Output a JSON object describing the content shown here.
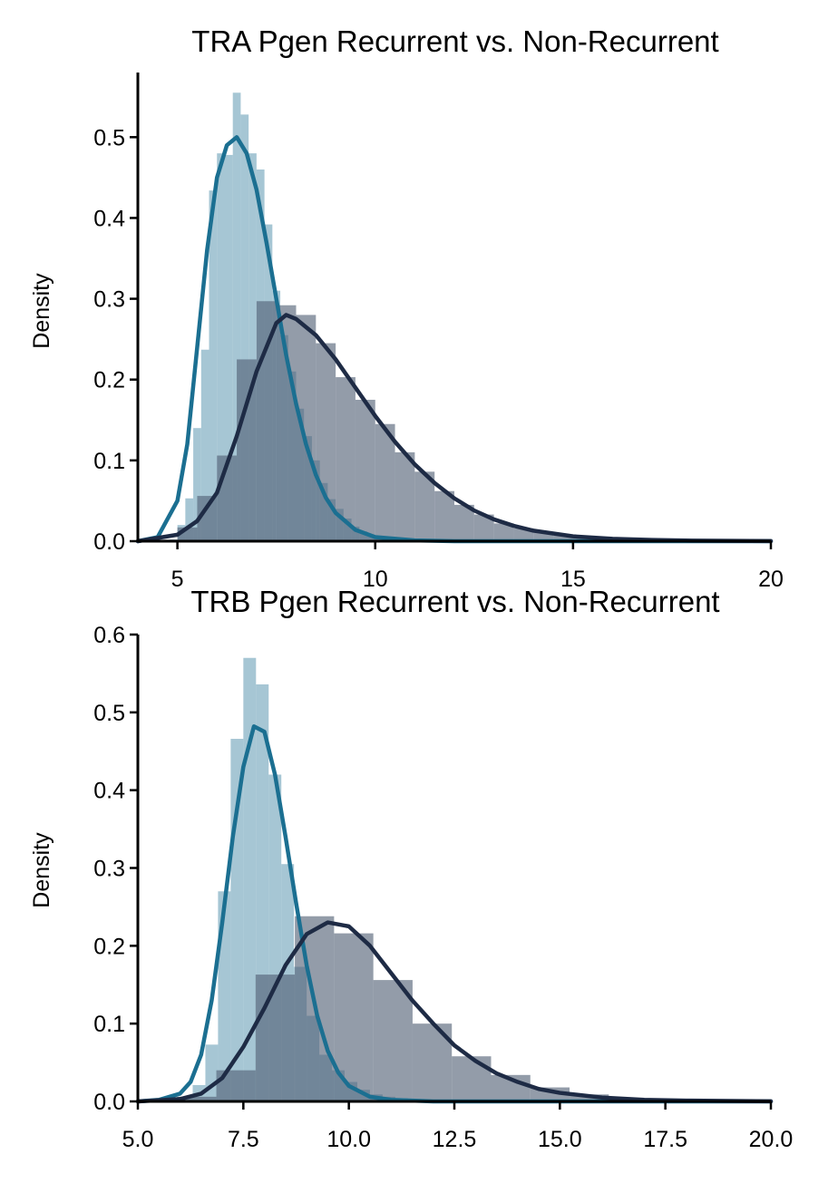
{
  "colors": {
    "recurrent": "#1b6f91",
    "recurrent_bar": "#6fa3ba",
    "non_recurrent": "#1e2b45",
    "non_recurrent_bar": "#515f74"
  },
  "chart_data": [
    {
      "type": "bar",
      "title": "TRA Pgen Recurrent vs. Non-Recurrent",
      "xlabel": "",
      "ylabel": "Density",
      "xlim": [
        4.0,
        20.0
      ],
      "ylim": [
        0.0,
        0.58
      ],
      "xticks": [
        5,
        10,
        15,
        20
      ],
      "xtick_labels": [
        "5",
        "10",
        "15",
        "20"
      ],
      "yticks": [
        0.0,
        0.1,
        0.2,
        0.3,
        0.4,
        0.5
      ],
      "ytick_labels": [
        "0.0",
        "0.1",
        "0.2",
        "0.3",
        "0.4",
        "0.5"
      ],
      "grid": false,
      "series": [
        {
          "kind": "histogram",
          "color_key": "recurrent",
          "bin_width": 0.2,
          "bins": [
            [
              4.8,
              0.002
            ],
            [
              5.0,
              0.02
            ],
            [
              5.2,
              0.053
            ],
            [
              5.4,
              0.14
            ],
            [
              5.6,
              0.237
            ],
            [
              5.8,
              0.434
            ],
            [
              6.0,
              0.48
            ],
            [
              6.2,
              0.478
            ],
            [
              6.4,
              0.555
            ],
            [
              6.6,
              0.528
            ],
            [
              6.8,
              0.48
            ],
            [
              7.0,
              0.46
            ],
            [
              7.2,
              0.392
            ],
            [
              7.4,
              0.31
            ],
            [
              7.6,
              0.255
            ],
            [
              7.8,
              0.21
            ],
            [
              8.0,
              0.164
            ],
            [
              8.2,
              0.13
            ],
            [
              8.4,
              0.1
            ],
            [
              8.6,
              0.072
            ],
            [
              8.8,
              0.052
            ],
            [
              9.0,
              0.04
            ],
            [
              9.2,
              0.028
            ],
            [
              9.4,
              0.018
            ],
            [
              9.6,
              0.012
            ],
            [
              9.8,
              0.008
            ],
            [
              10.0,
              0.005
            ],
            [
              10.4,
              0.004
            ],
            [
              10.8,
              0.003
            ],
            [
              11.2,
              0.002
            ],
            [
              11.6,
              0.001
            ],
            [
              12.0,
              0.001
            ]
          ]
        },
        {
          "kind": "histogram",
          "color_key": "non_recurrent",
          "bin_width": 0.5,
          "bins": [
            [
              4.5,
              0.002
            ],
            [
              5.0,
              0.017
            ],
            [
              5.5,
              0.056
            ],
            [
              6.0,
              0.106
            ],
            [
              6.5,
              0.225
            ],
            [
              7.0,
              0.297
            ],
            [
              7.5,
              0.292
            ],
            [
              8.0,
              0.28
            ],
            [
              8.5,
              0.245
            ],
            [
              9.0,
              0.203
            ],
            [
              9.5,
              0.175
            ],
            [
              10.0,
              0.145
            ],
            [
              10.5,
              0.11
            ],
            [
              11.0,
              0.086
            ],
            [
              11.5,
              0.062
            ],
            [
              12.0,
              0.045
            ],
            [
              12.5,
              0.033
            ],
            [
              13.0,
              0.022
            ],
            [
              13.5,
              0.016
            ],
            [
              14.0,
              0.011
            ],
            [
              14.5,
              0.007
            ],
            [
              15.0,
              0.005
            ],
            [
              15.5,
              0.003
            ],
            [
              16.0,
              0.002
            ],
            [
              16.5,
              0.001
            ],
            [
              17.0,
              0.001
            ],
            [
              17.5,
              0.0005
            ]
          ]
        },
        {
          "kind": "density_line",
          "color_key": "recurrent",
          "points": [
            [
              4.0,
              0.0
            ],
            [
              4.5,
              0.005
            ],
            [
              5.0,
              0.05
            ],
            [
              5.25,
              0.12
            ],
            [
              5.5,
              0.24
            ],
            [
              5.75,
              0.36
            ],
            [
              6.0,
              0.45
            ],
            [
              6.25,
              0.49
            ],
            [
              6.5,
              0.5
            ],
            [
              6.75,
              0.48
            ],
            [
              7.0,
              0.435
            ],
            [
              7.25,
              0.37
            ],
            [
              7.5,
              0.3
            ],
            [
              7.75,
              0.23
            ],
            [
              8.0,
              0.17
            ],
            [
              8.25,
              0.12
            ],
            [
              8.5,
              0.082
            ],
            [
              8.75,
              0.054
            ],
            [
              9.0,
              0.035
            ],
            [
              9.5,
              0.014
            ],
            [
              10.0,
              0.005
            ],
            [
              11.0,
              0.001
            ],
            [
              12.0,
              0.0
            ],
            [
              20.0,
              0.0
            ]
          ]
        },
        {
          "kind": "density_line",
          "color_key": "non_recurrent",
          "points": [
            [
              4.0,
              0.0
            ],
            [
              5.0,
              0.008
            ],
            [
              5.5,
              0.025
            ],
            [
              6.0,
              0.06
            ],
            [
              6.5,
              0.13
            ],
            [
              7.0,
              0.21
            ],
            [
              7.5,
              0.27
            ],
            [
              7.75,
              0.28
            ],
            [
              8.0,
              0.275
            ],
            [
              8.5,
              0.255
            ],
            [
              9.0,
              0.225
            ],
            [
              9.5,
              0.19
            ],
            [
              10.0,
              0.155
            ],
            [
              10.5,
              0.123
            ],
            [
              11.0,
              0.095
            ],
            [
              11.5,
              0.072
            ],
            [
              12.0,
              0.053
            ],
            [
              12.5,
              0.038
            ],
            [
              13.0,
              0.027
            ],
            [
              13.5,
              0.019
            ],
            [
              14.0,
              0.013
            ],
            [
              15.0,
              0.006
            ],
            [
              16.0,
              0.003
            ],
            [
              17.0,
              0.0015
            ],
            [
              18.0,
              0.0007
            ],
            [
              20.0,
              0.0002
            ]
          ]
        }
      ]
    },
    {
      "type": "bar",
      "title": "TRB Pgen Recurrent vs. Non-Recurrent",
      "xlabel": "",
      "ylabel": "Density",
      "xlim": [
        5.0,
        20.0
      ],
      "ylim": [
        0.0,
        0.6
      ],
      "xticks": [
        5.0,
        7.5,
        10.0,
        12.5,
        15.0,
        17.5,
        20.0
      ],
      "xtick_labels": [
        "5.0",
        "7.5",
        "10.0",
        "12.5",
        "15.0",
        "17.5",
        "20.0"
      ],
      "yticks": [
        0.0,
        0.1,
        0.2,
        0.3,
        0.4,
        0.5,
        0.6
      ],
      "ytick_labels": [
        "0.0",
        "0.1",
        "0.2",
        "0.3",
        "0.4",
        "0.5",
        "0.6"
      ],
      "grid": false,
      "series": [
        {
          "kind": "histogram",
          "color_key": "recurrent",
          "bin_width": 0.3,
          "bins": [
            [
              5.7,
              0.002
            ],
            [
              6.0,
              0.005
            ],
            [
              6.3,
              0.021
            ],
            [
              6.6,
              0.073
            ],
            [
              6.9,
              0.27
            ],
            [
              7.2,
              0.466
            ],
            [
              7.5,
              0.57
            ],
            [
              7.8,
              0.536
            ],
            [
              8.1,
              0.42
            ],
            [
              8.4,
              0.305
            ],
            [
              8.7,
              0.173
            ],
            [
              9.0,
              0.11
            ],
            [
              9.3,
              0.06
            ],
            [
              9.6,
              0.04
            ],
            [
              9.9,
              0.025
            ],
            [
              10.2,
              0.015
            ],
            [
              10.5,
              0.009
            ],
            [
              10.8,
              0.006
            ],
            [
              11.1,
              0.004
            ],
            [
              11.4,
              0.003
            ],
            [
              11.7,
              0.002
            ],
            [
              12.0,
              0.001
            ]
          ]
        },
        {
          "kind": "histogram",
          "color_key": "non_recurrent",
          "bin_width": 0.93,
          "bins": [
            [
              5.0,
              0.002
            ],
            [
              5.93,
              0.006
            ],
            [
              6.86,
              0.04
            ],
            [
              7.79,
              0.163
            ],
            [
              8.72,
              0.238
            ],
            [
              9.65,
              0.216
            ],
            [
              10.58,
              0.156
            ],
            [
              11.51,
              0.1
            ],
            [
              12.44,
              0.058
            ],
            [
              13.37,
              0.034
            ],
            [
              14.3,
              0.018
            ],
            [
              15.23,
              0.009
            ],
            [
              16.16,
              0.004
            ],
            [
              17.09,
              0.002
            ],
            [
              18.02,
              0.001
            ]
          ]
        },
        {
          "kind": "density_line",
          "color_key": "recurrent",
          "points": [
            [
              5.0,
              0.0
            ],
            [
              5.5,
              0.002
            ],
            [
              6.0,
              0.01
            ],
            [
              6.25,
              0.025
            ],
            [
              6.5,
              0.06
            ],
            [
              6.75,
              0.13
            ],
            [
              7.0,
              0.23
            ],
            [
              7.25,
              0.34
            ],
            [
              7.5,
              0.43
            ],
            [
              7.75,
              0.482
            ],
            [
              8.0,
              0.475
            ],
            [
              8.25,
              0.42
            ],
            [
              8.5,
              0.34
            ],
            [
              8.75,
              0.255
            ],
            [
              9.0,
              0.175
            ],
            [
              9.25,
              0.11
            ],
            [
              9.5,
              0.065
            ],
            [
              9.75,
              0.037
            ],
            [
              10.0,
              0.02
            ],
            [
              10.5,
              0.006
            ],
            [
              11.0,
              0.002
            ],
            [
              12.0,
              0.0
            ],
            [
              20.0,
              0.0
            ]
          ]
        },
        {
          "kind": "density_line",
          "color_key": "non_recurrent",
          "points": [
            [
              5.0,
              0.0
            ],
            [
              6.0,
              0.003
            ],
            [
              6.5,
              0.01
            ],
            [
              7.0,
              0.03
            ],
            [
              7.5,
              0.07
            ],
            [
              8.0,
              0.12
            ],
            [
              8.5,
              0.175
            ],
            [
              9.0,
              0.215
            ],
            [
              9.5,
              0.23
            ],
            [
              10.0,
              0.225
            ],
            [
              10.5,
              0.2
            ],
            [
              11.0,
              0.165
            ],
            [
              11.5,
              0.13
            ],
            [
              12.0,
              0.1
            ],
            [
              12.5,
              0.072
            ],
            [
              13.0,
              0.052
            ],
            [
              13.5,
              0.036
            ],
            [
              14.0,
              0.025
            ],
            [
              14.5,
              0.016
            ],
            [
              15.0,
              0.011
            ],
            [
              16.0,
              0.005
            ],
            [
              17.0,
              0.002
            ],
            [
              18.0,
              0.001
            ],
            [
              20.0,
              0.0002
            ]
          ]
        }
      ]
    }
  ]
}
